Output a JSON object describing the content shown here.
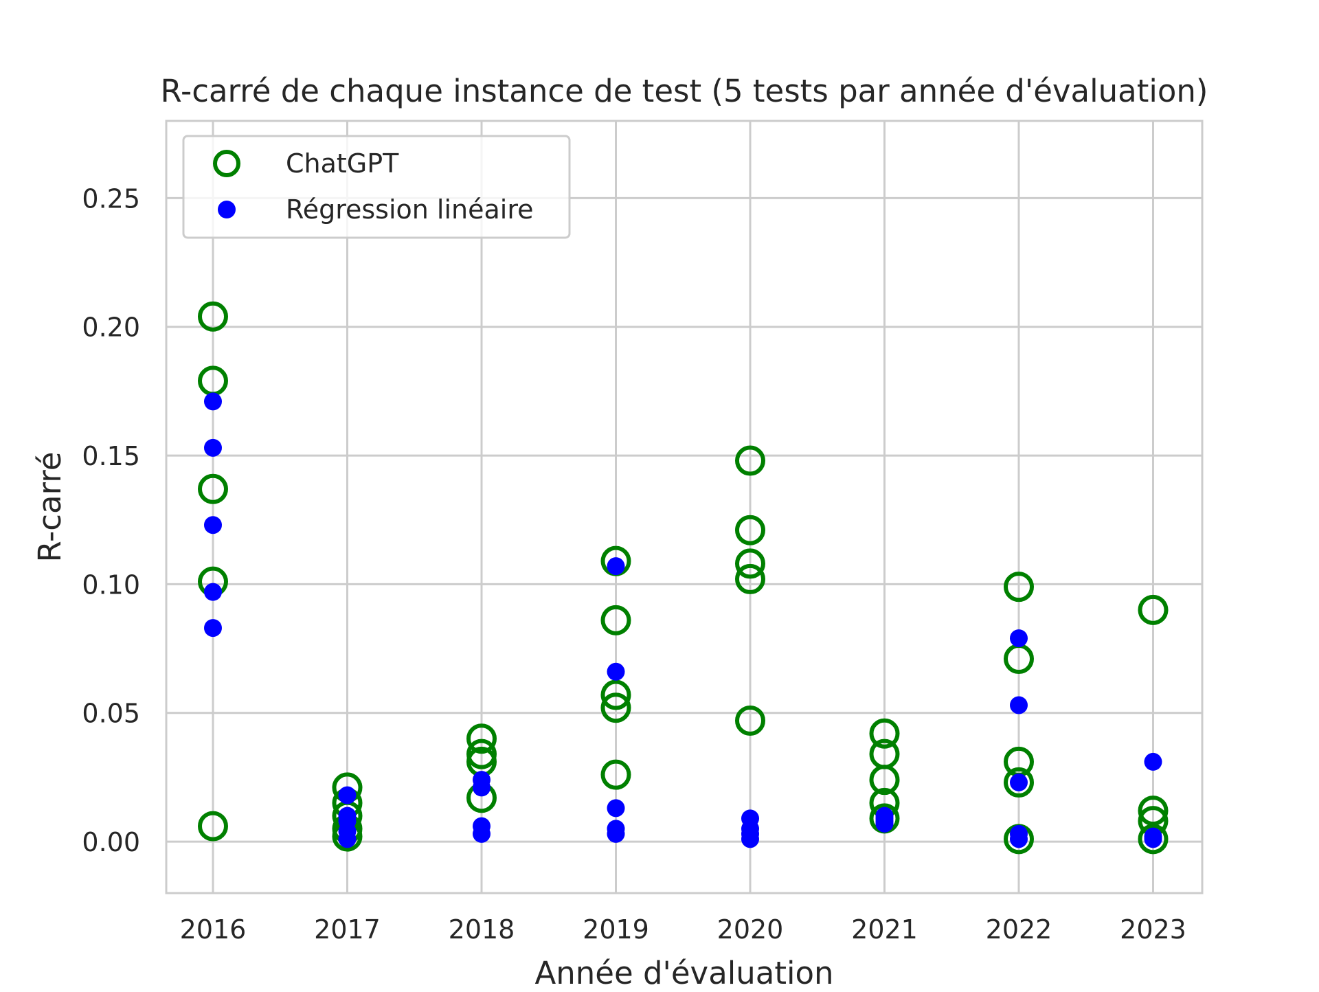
{
  "chart_data": {
    "type": "scatter",
    "title": "R-carré de chaque instance de test (5 tests par année d'évaluation)",
    "xlabel": "Année d'évaluation",
    "ylabel": "R-carré",
    "categories": [
      "2016",
      "2017",
      "2018",
      "2019",
      "2020",
      "2021",
      "2022",
      "2023"
    ],
    "ylim": [
      -0.02,
      0.28
    ],
    "yticks": [
      "0.00",
      "0.05",
      "0.10",
      "0.15",
      "0.20",
      "0.25"
    ],
    "grid": true,
    "legend_position": "top-left",
    "series": [
      {
        "name": "ChatGPT",
        "marker": "open-circle",
        "color": "#008000",
        "points": [
          {
            "x": "2016",
            "y": [
              0.204,
              0.179,
              0.137,
              0.101,
              0.006
            ]
          },
          {
            "x": "2017",
            "y": [
              0.021,
              0.015,
              0.01,
              0.005,
              0.002
            ]
          },
          {
            "x": "2018",
            "y": [
              0.04,
              0.034,
              0.031,
              0.017
            ]
          },
          {
            "x": "2019",
            "y": [
              0.109,
              0.086,
              0.057,
              0.052,
              0.026
            ]
          },
          {
            "x": "2020",
            "y": [
              0.148,
              0.121,
              0.108,
              0.102,
              0.047
            ]
          },
          {
            "x": "2021",
            "y": [
              0.042,
              0.034,
              0.024,
              0.015,
              0.009
            ]
          },
          {
            "x": "2022",
            "y": [
              0.099,
              0.071,
              0.031,
              0.023,
              0.001
            ]
          },
          {
            "x": "2023",
            "y": [
              0.09,
              0.012,
              0.008,
              0.001
            ]
          }
        ]
      },
      {
        "name": "Régression linéaire",
        "marker": "filled-circle",
        "color": "#0000ff",
        "points": [
          {
            "x": "2016",
            "y": [
              0.171,
              0.153,
              0.123,
              0.097,
              0.083
            ]
          },
          {
            "x": "2017",
            "y": [
              0.018,
              0.01,
              0.008,
              0.004,
              0.001
            ]
          },
          {
            "x": "2018",
            "y": [
              0.024,
              0.021,
              0.006,
              0.003
            ]
          },
          {
            "x": "2019",
            "y": [
              0.107,
              0.066,
              0.013,
              0.005,
              0.003
            ]
          },
          {
            "x": "2020",
            "y": [
              0.009,
              0.005,
              0.003,
              0.001
            ]
          },
          {
            "x": "2021",
            "y": [
              0.01,
              0.009,
              0.008,
              0.007
            ]
          },
          {
            "x": "2022",
            "y": [
              0.079,
              0.053,
              0.023,
              0.003,
              0.001
            ]
          },
          {
            "x": "2023",
            "y": [
              0.031,
              0.002,
              0.001
            ]
          }
        ]
      }
    ]
  }
}
